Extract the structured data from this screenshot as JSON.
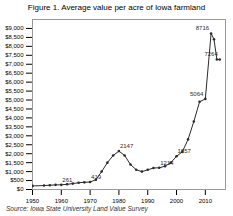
{
  "chart_data": {
    "type": "line",
    "title": "Figure 1. Average value per acre of Iowa farmland",
    "source": "Source: Iowa State University Land Value Survey",
    "x": [
      1950,
      1954,
      1956,
      1958,
      1960,
      1962,
      1964,
      1966,
      1968,
      1970,
      1972,
      1974,
      1976,
      1978,
      1980,
      1982,
      1984,
      1986,
      1988,
      1990,
      1992,
      1994,
      1996,
      1998,
      2000,
      2002,
      2004,
      2006,
      2008,
      2010,
      2012,
      2013,
      2014,
      2015
    ],
    "values": [
      200,
      220,
      240,
      260,
      261,
      290,
      330,
      380,
      400,
      419,
      550,
      1000,
      1500,
      1900,
      2147,
      1900,
      1400,
      1100,
      1000,
      1100,
      1200,
      1214,
      1300,
      1500,
      1857,
      2100,
      2800,
      3800,
      4900,
      5064,
      8716,
      8400,
      7264,
      7264
    ],
    "color": "#2b2b2b",
    "marker": "circle",
    "xlim": [
      1950,
      2017
    ],
    "xticks": [
      1950,
      1960,
      1970,
      1980,
      1990,
      2000,
      2010
    ],
    "ylim": [
      0,
      9500
    ],
    "yticks": [
      {
        "value": 0,
        "label": "$0"
      },
      {
        "value": 500,
        "label": "$500"
      },
      {
        "value": 1000,
        "label": "$1,000"
      },
      {
        "value": 1500,
        "label": "$1,500"
      },
      {
        "value": 2000,
        "label": "$2,000"
      },
      {
        "value": 2500,
        "label": "$2,500"
      },
      {
        "value": 3000,
        "label": "$3,000"
      },
      {
        "value": 3500,
        "label": "$3,500"
      },
      {
        "value": 4000,
        "label": "$4,000"
      },
      {
        "value": 4500,
        "label": "$4,500"
      },
      {
        "value": 5000,
        "label": "$5,000"
      },
      {
        "value": 5500,
        "label": "$5,500"
      },
      {
        "value": 6000,
        "label": "$6,000"
      },
      {
        "value": 6500,
        "label": "$6,500"
      },
      {
        "value": 7000,
        "label": "$7,000"
      },
      {
        "value": 7500,
        "label": "$7,500"
      },
      {
        "value": 8000,
        "label": "$8,000"
      },
      {
        "value": 8500,
        "label": "$8,500"
      },
      {
        "value": 9000,
        "label": "$9,000"
      }
    ],
    "annotations": [
      {
        "x": 1960,
        "y": 261,
        "text": "261"
      },
      {
        "x": 1970,
        "y": 419,
        "text": "419"
      },
      {
        "x": 1980,
        "y": 2147,
        "text": "2147"
      },
      {
        "x": 1994,
        "y": 1214,
        "text": "1214"
      },
      {
        "x": 2000,
        "y": 1857,
        "text": "1857"
      },
      {
        "x": 2010,
        "y": 5064,
        "text": "5064"
      },
      {
        "x": 2012,
        "y": 8716,
        "text": "8716"
      },
      {
        "x": 2015,
        "y": 7264,
        "text": "7264"
      }
    ]
  }
}
